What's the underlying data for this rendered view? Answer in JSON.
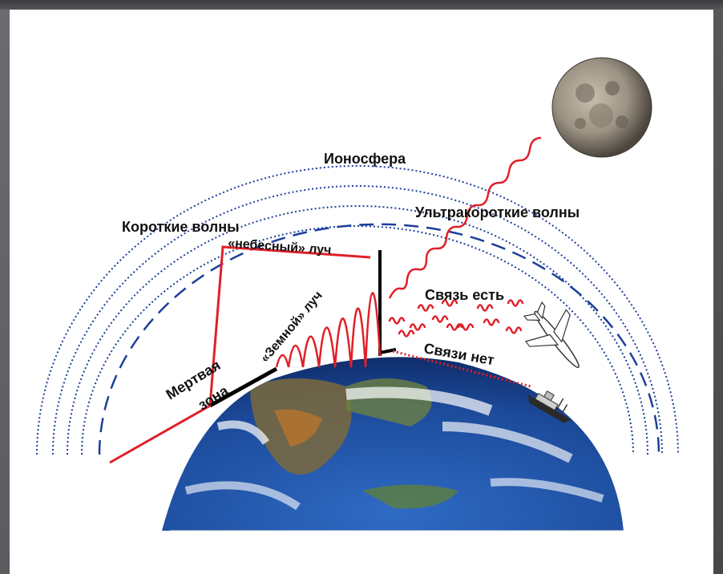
{
  "labels": {
    "ionosphere": "Ионосфера",
    "short_waves": "Короткие волны",
    "ultrashort_waves": "Ультракороткие волны",
    "sky_ray": "«небесный» луч",
    "ground_ray": "«Земной» луч",
    "dead_zone_line1": "Мертвая",
    "dead_zone_line2": "зона",
    "link_yes": "Связь есть",
    "link_no": "Связи нет"
  },
  "colors": {
    "wave": "#e0202a",
    "ionosphere_dots": "#1d3f9a",
    "horizon_dash": "#1d3f9a",
    "ocean": "#1f4fa8",
    "land": "#4f7a3a"
  },
  "icons": {
    "moon": "moon-icon",
    "airplane": "airplane-icon",
    "ship": "ship-icon",
    "earth": "earth-icon"
  }
}
